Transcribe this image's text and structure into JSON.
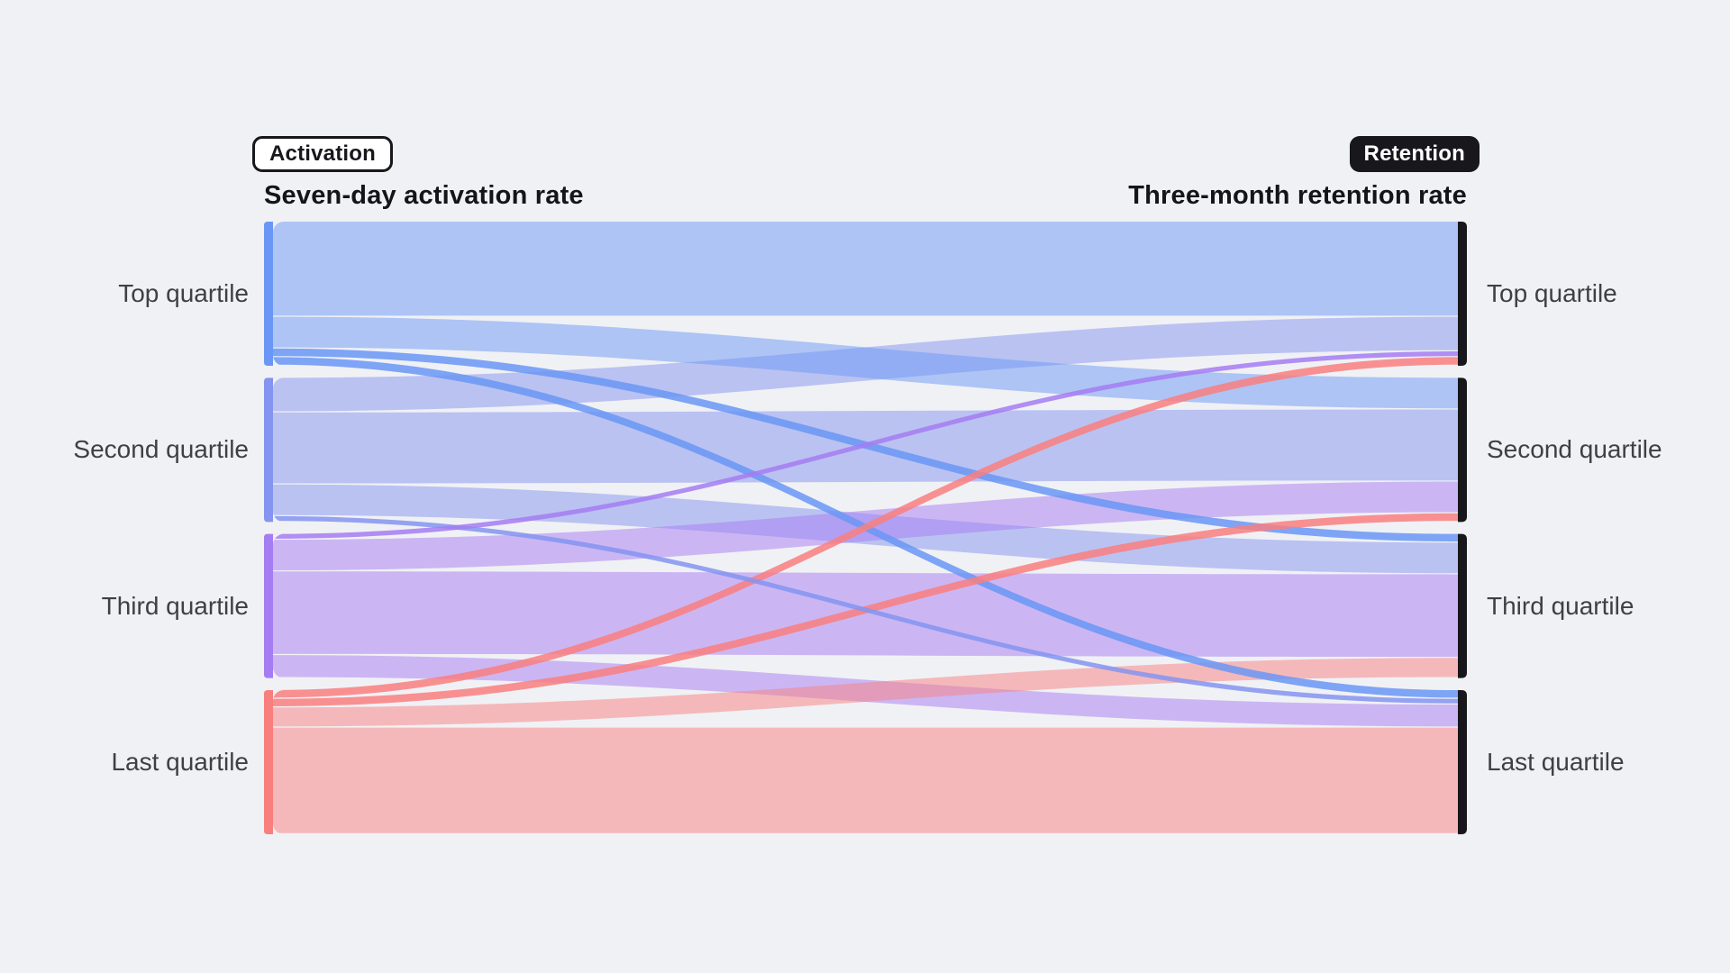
{
  "colors": {
    "background": "#f0f1f5",
    "badge_dark": "#17171c",
    "badge_light_bg": "#ffffff",
    "heading_text": "#141419",
    "label_text": "#3f3f46",
    "right_node": "#17171c"
  },
  "badges": {
    "activation": "Activation",
    "retention": "Retention"
  },
  "headers": {
    "left": "Seven-day activation rate",
    "right": "Three-month retention rate"
  },
  "chart_data": {
    "type": "sankey",
    "title": "",
    "left_header": "Seven-day activation rate",
    "right_header": "Three-month retention rate",
    "left_categories": [
      "Top quartile",
      "Second quartile",
      "Third quartile",
      "Last quartile"
    ],
    "right_categories": [
      "Top quartile",
      "Second quartile",
      "Third quartile",
      "Last quartile"
    ],
    "units": "percent of users; each quartile node = 25%",
    "node_colors": [
      "#6A97F5",
      "#8494F0",
      "#A57CF2",
      "#F97F7F"
    ],
    "right_node_color": "#17171C",
    "flow_opacity_wide": 0.5,
    "flow_opacity_thin": 0.85,
    "flows_percent": [
      [
        16.5,
        5.5,
        1.5,
        1.5
      ],
      [
        6.0,
        12.5,
        5.5,
        1.0
      ],
      [
        1.0,
        5.5,
        14.5,
        4.0
      ],
      [
        1.5,
        1.5,
        3.5,
        18.5
      ]
    ]
  }
}
